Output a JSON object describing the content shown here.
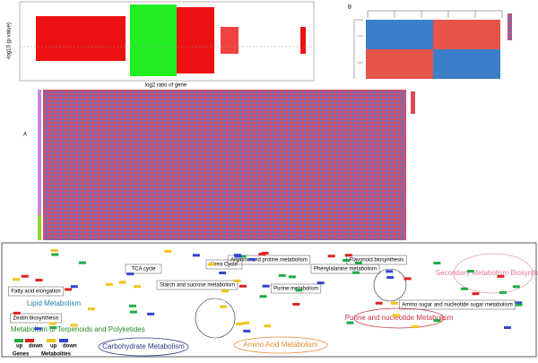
{
  "panel_a": {
    "x_label": "log2 ratio of gene",
    "y_label": "-log10 (p value)"
  },
  "panel_b": {
    "label": "B"
  },
  "panel_c": {
    "label": "A"
  },
  "pathway_map": {
    "modules": [
      {
        "label": "Lipid Metabolism"
      },
      {
        "label": "Metabolism of Terpenoids and Polyketides"
      },
      {
        "label": "Carbohydrate Metabolism"
      },
      {
        "label": "Amino Acid Metabolism"
      },
      {
        "label": "Purine and nucleotide Metabolism"
      },
      {
        "label": "Secondary Metabolism Biosynthesis"
      }
    ],
    "pathways": [
      "Fatty acid elongation",
      "Zeatin biosynthesis",
      "TCA cycle",
      "Urea Cycle",
      "Purine metabolism",
      "Arginine and proline metabolism",
      "Starch and sucrose metabolism",
      "Amino sugar and nucleotide sugar metabolism",
      "Phenylalanine metabolism",
      "Flavonoid biosynthesis"
    ],
    "legend": {
      "row1": [
        "up",
        "down",
        "up",
        "down"
      ],
      "row2": [
        "Genes",
        "Metabolites"
      ]
    }
  }
}
